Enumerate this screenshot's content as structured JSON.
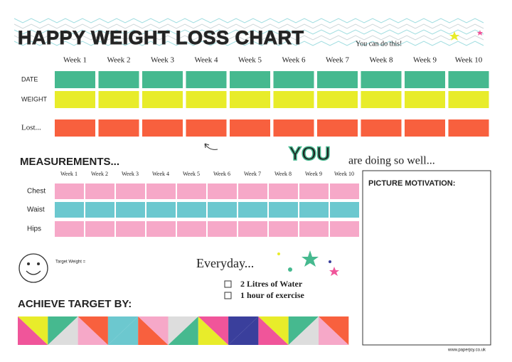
{
  "header": {
    "title": "HAPPY WEIGHT LOSS CHART",
    "tagline": "You can do this!"
  },
  "tracker": {
    "weeks": [
      "Week 1",
      "Week 2",
      "Week 3",
      "Week 4",
      "Week 5",
      "Week 6",
      "Week 7",
      "Week 8",
      "Week 9",
      "Week 10"
    ],
    "rows": [
      "DATE",
      "WEIGHT",
      "Lost..."
    ]
  },
  "measurements": {
    "title": "MEASUREMENTS...",
    "weeks": [
      "Week 1",
      "Week 2",
      "Week 3",
      "Week 4",
      "Week 5",
      "Week 6",
      "Week 7",
      "Week 8",
      "Week 9",
      "Week 10"
    ],
    "rows": [
      "Chest",
      "Waist",
      "Hips"
    ]
  },
  "motivation": {
    "you": "YOU",
    "message": "are doing so well...",
    "picture_title": "PICTURE MOTIVATION:"
  },
  "target": {
    "weight_label": "Target Weight =",
    "title": "ACHIEVE TARGET BY:"
  },
  "everyday": {
    "title": "Everyday...",
    "items": [
      "2 Litres of Water",
      "1 hour of exercise"
    ]
  },
  "footer": {
    "url": "www.paperjoy.co.uk"
  }
}
